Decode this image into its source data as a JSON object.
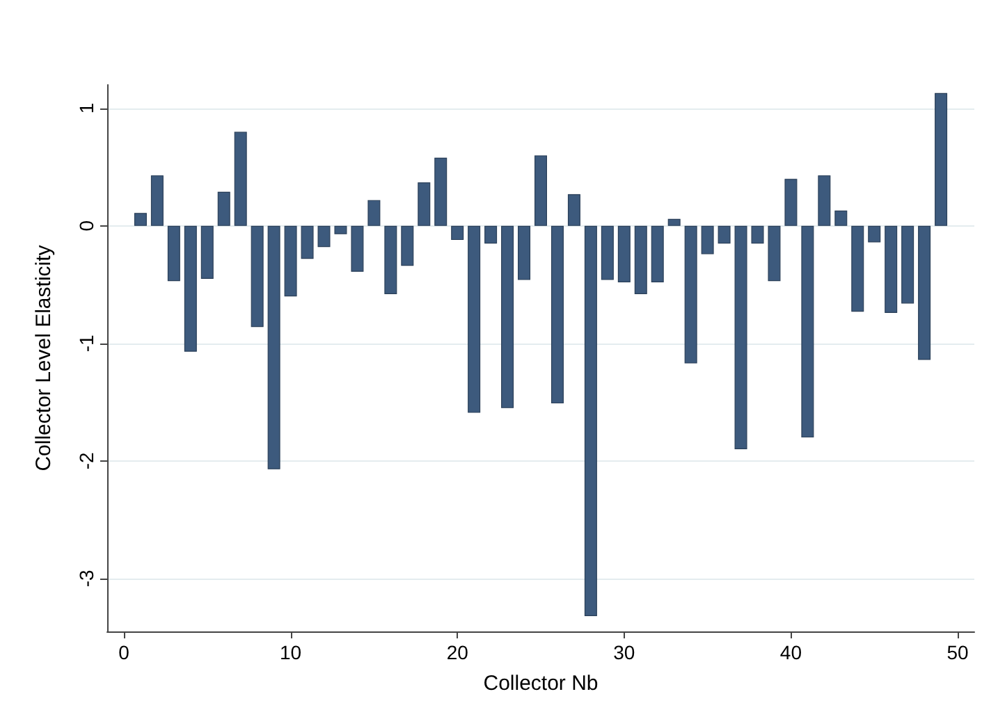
{
  "chart_data": {
    "type": "bar",
    "xlabel": "Collector Nb",
    "ylabel": "Collector Level Elasticity",
    "x": [
      1,
      2,
      3,
      4,
      5,
      6,
      7,
      8,
      9,
      10,
      11,
      12,
      13,
      14,
      15,
      16,
      17,
      18,
      19,
      20,
      21,
      22,
      23,
      24,
      25,
      26,
      27,
      28,
      29,
      30,
      31,
      32,
      33,
      34,
      35,
      36,
      37,
      38,
      39,
      40,
      41,
      42,
      43,
      44,
      45,
      46,
      47,
      48,
      49
    ],
    "values": [
      0.11,
      0.43,
      -0.47,
      -1.07,
      -0.45,
      0.29,
      0.8,
      -0.86,
      -2.07,
      -0.6,
      -0.28,
      -0.18,
      -0.07,
      -0.39,
      0.22,
      -0.58,
      -0.34,
      0.37,
      0.58,
      -0.12,
      -1.59,
      -0.15,
      -1.55,
      -0.46,
      0.6,
      -1.51,
      0.27,
      -3.32,
      -0.46,
      -0.48,
      -0.58,
      -0.48,
      0.06,
      -1.17,
      -0.24,
      -0.15,
      -1.9,
      -0.15,
      -0.47,
      0.4,
      -1.8,
      0.43,
      0.13,
      -0.73,
      -0.14,
      -0.74,
      -0.66,
      -1.14,
      1.13
    ],
    "color": "#3d5a7d",
    "xlim": [
      -1,
      51
    ],
    "xticks": [
      0,
      10,
      20,
      30,
      40,
      50
    ],
    "ylim": [
      -3.45,
      1.2
    ],
    "yticks": [
      -3,
      -2,
      -1,
      0,
      1
    ],
    "grid": "y"
  }
}
